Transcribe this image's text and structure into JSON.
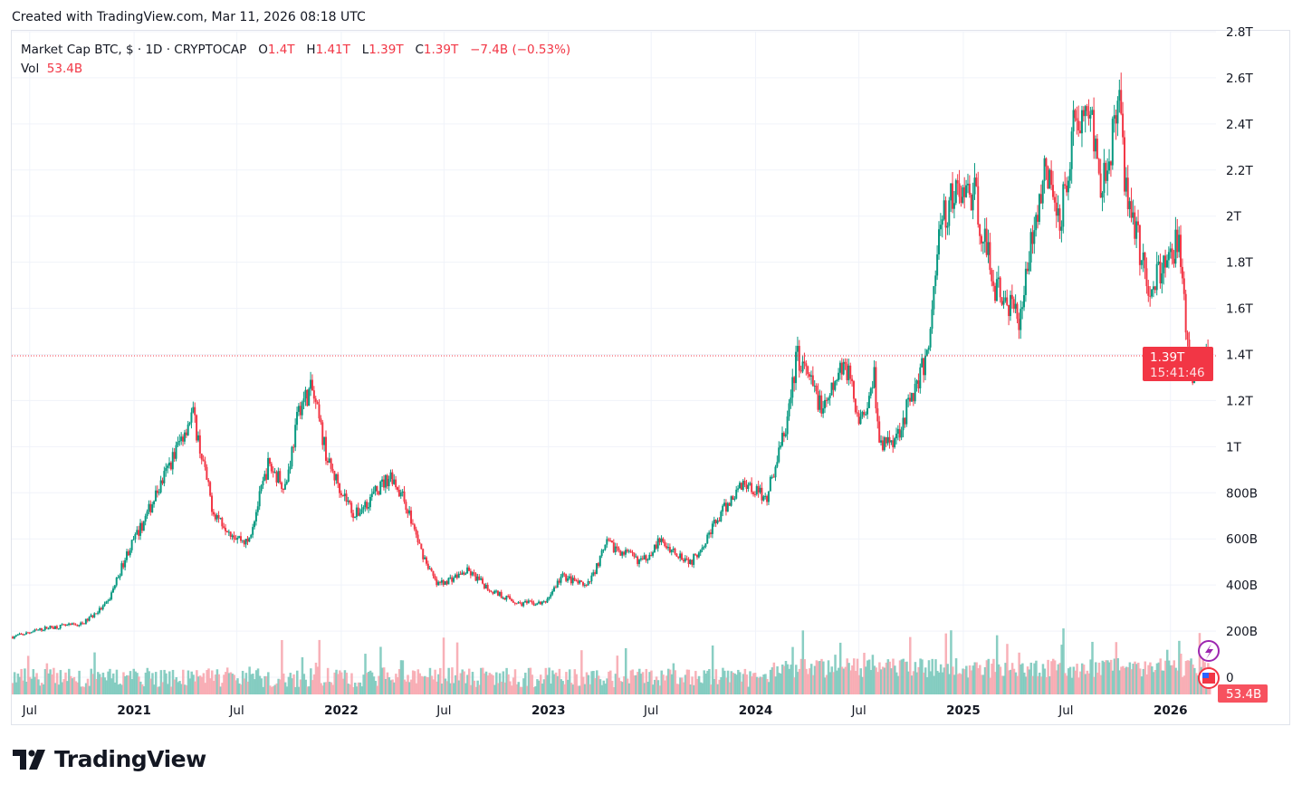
{
  "header": {
    "created": "Created with TradingView.com, Mar 11, 2026 08:18 UTC"
  },
  "legend": {
    "symbol": "Market Cap BTC, $ · 1D · CRYPTOCAP",
    "o_label": "O",
    "o": "1.4T",
    "h_label": "H",
    "h": "1.41T",
    "l_label": "L",
    "l": "1.39T",
    "c_label": "C",
    "c": "1.39T",
    "change": "−7.4B (−0.53%)",
    "vol_label": "Vol",
    "vol": "53.4B"
  },
  "price_badge": {
    "price": "1.39T",
    "countdown": "15:41:46"
  },
  "volume_badge": "53.4B",
  "logo": "TradingView",
  "colors": {
    "up": "#089981",
    "down": "#f23645",
    "grid": "#f0f3fa",
    "text": "#131722"
  },
  "chart_data": {
    "type": "candlestick",
    "title": "Market Cap BTC, $ · 1D · CRYPTOCAP",
    "ylim": [
      0,
      2.8
    ],
    "y_unit": "T",
    "y_ticks": [
      "0",
      "200B",
      "400B",
      "600B",
      "800B",
      "1T",
      "1.2T",
      "1.4T",
      "1.6T",
      "1.8T",
      "2T",
      "2.2T",
      "2.4T",
      "2.6T",
      "2.8T"
    ],
    "x_ticks": [
      {
        "date": "2020-07-01",
        "label": "Jul",
        "bold": false
      },
      {
        "date": "2021-01-01",
        "label": "2021",
        "bold": true
      },
      {
        "date": "2021-07-01",
        "label": "Jul",
        "bold": false
      },
      {
        "date": "2022-01-01",
        "label": "2022",
        "bold": true
      },
      {
        "date": "2022-07-01",
        "label": "Jul",
        "bold": false
      },
      {
        "date": "2023-01-01",
        "label": "2023",
        "bold": true
      },
      {
        "date": "2023-07-01",
        "label": "Jul",
        "bold": false
      },
      {
        "date": "2024-01-01",
        "label": "2024",
        "bold": true
      },
      {
        "date": "2024-07-01",
        "label": "Jul",
        "bold": false
      },
      {
        "date": "2025-01-01",
        "label": "2025",
        "bold": true
      },
      {
        "date": "2025-07-01",
        "label": "Jul",
        "bold": false
      },
      {
        "date": "2026-01-01",
        "label": "2026",
        "bold": true
      }
    ],
    "grid": true,
    "last_price": 1.39,
    "approx_close_path_B": [
      [
        "2020-06-01",
        175
      ],
      [
        "2020-08-01",
        215
      ],
      [
        "2020-10-01",
        230
      ],
      [
        "2020-11-15",
        320
      ],
      [
        "2020-12-20",
        540
      ],
      [
        "2021-01-15",
        660
      ],
      [
        "2021-02-25",
        880
      ],
      [
        "2021-04-14",
        1150
      ],
      [
        "2021-05-20",
        720
      ],
      [
        "2021-06-25",
        620
      ],
      [
        "2021-07-20",
        580
      ],
      [
        "2021-08-25",
        920
      ],
      [
        "2021-09-25",
        830
      ],
      [
        "2021-10-20",
        1180
      ],
      [
        "2021-11-10",
        1250
      ],
      [
        "2021-12-10",
        920
      ],
      [
        "2022-01-25",
        700
      ],
      [
        "2022-03-30",
        880
      ],
      [
        "2022-04-25",
        750
      ],
      [
        "2022-05-20",
        560
      ],
      [
        "2022-06-18",
        400
      ],
      [
        "2022-08-12",
        460
      ],
      [
        "2022-09-20",
        380
      ],
      [
        "2022-11-10",
        320
      ],
      [
        "2022-12-25",
        320
      ],
      [
        "2023-01-25",
        440
      ],
      [
        "2023-03-10",
        390
      ],
      [
        "2023-04-14",
        580
      ],
      [
        "2023-06-15",
        500
      ],
      [
        "2023-07-15",
        590
      ],
      [
        "2023-09-10",
        500
      ],
      [
        "2023-10-25",
        680
      ],
      [
        "2023-12-10",
        850
      ],
      [
        "2024-01-20",
        780
      ],
      [
        "2024-02-25",
        1100
      ],
      [
        "2024-03-14",
        1400
      ],
      [
        "2024-05-01",
        1150
      ],
      [
        "2024-06-05",
        1380
      ],
      [
        "2024-07-05",
        1100
      ],
      [
        "2024-07-28",
        1330
      ],
      [
        "2024-08-05",
        1000
      ],
      [
        "2024-09-06",
        1050
      ],
      [
        "2024-10-30",
        1400
      ],
      [
        "2024-11-20",
        1950
      ],
      [
        "2024-12-17",
        2100
      ],
      [
        "2025-01-20",
        2100
      ],
      [
        "2025-02-25",
        1700
      ],
      [
        "2025-04-08",
        1550
      ],
      [
        "2025-05-22",
        2200
      ],
      [
        "2025-06-22",
        2000
      ],
      [
        "2025-07-14",
        2400
      ],
      [
        "2025-08-14",
        2450
      ],
      [
        "2025-09-01",
        2150
      ],
      [
        "2025-10-06",
        2480
      ],
      [
        "2025-10-11",
        2200
      ],
      [
        "2025-11-21",
        1700
      ],
      [
        "2025-12-15",
        1750
      ],
      [
        "2026-01-14",
        1900
      ],
      [
        "2026-02-05",
        1300
      ],
      [
        "2026-02-20",
        1350
      ],
      [
        "2026-03-11",
        1390
      ]
    ]
  }
}
